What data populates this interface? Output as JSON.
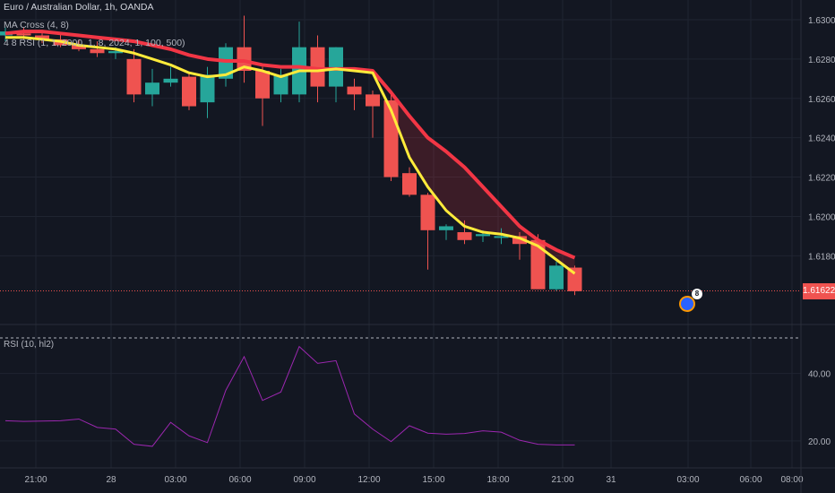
{
  "header": {
    "title": "Euro / Australian Dollar, 1h, OANDA",
    "ma_label": "MA Cross (4, 8)",
    "rsi_strategy_label": "4 8 RSI (1, 1, 2000, 1, 8, 2024, 1, 100, 500)",
    "rsi_label": "RSI (10, hl2)"
  },
  "last_price": "1.61622",
  "event_badge": {
    "icon": "flag-icon",
    "count": "8"
  },
  "colors": {
    "background": "#131722",
    "grid": "#1f2431",
    "up": "#26a69a",
    "down": "#ef5350",
    "ma_fast": "#ffeb3b",
    "ma_slow": "#f23645",
    "rsi_line": "#9c27b0",
    "text": "#b2b5be"
  },
  "chart_data": [
    {
      "type": "candlestick",
      "title": "Euro / Australian Dollar, 1h, OANDA",
      "y_ticks": [
        "1.63000",
        "1.62800",
        "1.62600",
        "1.62400",
        "1.62200",
        "1.62000",
        "1.61800"
      ],
      "ylim": [
        1.6146,
        1.631
      ],
      "x_ticks": [
        "21:00",
        "28",
        "03:00",
        "06:00",
        "09:00",
        "12:00",
        "15:00",
        "18:00",
        "21:00",
        "31",
        "03:00",
        "06:00",
        "08:00"
      ],
      "candles": [
        {
          "o": 1.6292,
          "h": 1.6296,
          "l": 1.6289,
          "c": 1.6294
        },
        {
          "o": 1.6293,
          "h": 1.6296,
          "l": 1.629,
          "c": 1.6292
        },
        {
          "o": 1.6292,
          "h": 1.6294,
          "l": 1.6288,
          "c": 1.629
        },
        {
          "o": 1.629,
          "h": 1.6293,
          "l": 1.6286,
          "c": 1.6287
        },
        {
          "o": 1.6287,
          "h": 1.629,
          "l": 1.6284,
          "c": 1.6285
        },
        {
          "o": 1.6285,
          "h": 1.6289,
          "l": 1.6281,
          "c": 1.6283
        },
        {
          "o": 1.6283,
          "h": 1.6286,
          "l": 1.628,
          "c": 1.6284
        },
        {
          "o": 1.628,
          "h": 1.6285,
          "l": 1.6258,
          "c": 1.6262
        },
        {
          "o": 1.6262,
          "h": 1.6275,
          "l": 1.6256,
          "c": 1.6268
        },
        {
          "o": 1.6268,
          "h": 1.6276,
          "l": 1.6266,
          "c": 1.627
        },
        {
          "o": 1.6271,
          "h": 1.6273,
          "l": 1.6254,
          "c": 1.6256
        },
        {
          "o": 1.6258,
          "h": 1.6276,
          "l": 1.625,
          "c": 1.6272
        },
        {
          "o": 1.627,
          "h": 1.6288,
          "l": 1.6266,
          "c": 1.6286
        },
        {
          "o": 1.6286,
          "h": 1.6302,
          "l": 1.6268,
          "c": 1.6274
        },
        {
          "o": 1.6274,
          "h": 1.6276,
          "l": 1.6246,
          "c": 1.626
        },
        {
          "o": 1.6262,
          "h": 1.6275,
          "l": 1.6258,
          "c": 1.6272
        },
        {
          "o": 1.6262,
          "h": 1.6299,
          "l": 1.6258,
          "c": 1.6286
        },
        {
          "o": 1.6286,
          "h": 1.6292,
          "l": 1.6258,
          "c": 1.6266
        },
        {
          "o": 1.6266,
          "h": 1.6286,
          "l": 1.6258,
          "c": 1.6286
        },
        {
          "o": 1.6266,
          "h": 1.627,
          "l": 1.6254,
          "c": 1.6262
        },
        {
          "o": 1.6262,
          "h": 1.6264,
          "l": 1.624,
          "c": 1.6256
        },
        {
          "o": 1.6259,
          "h": 1.6264,
          "l": 1.6218,
          "c": 1.622
        },
        {
          "o": 1.6222,
          "h": 1.6225,
          "l": 1.621,
          "c": 1.6211
        },
        {
          "o": 1.6211,
          "h": 1.6212,
          "l": 1.6173,
          "c": 1.6193
        },
        {
          "o": 1.6193,
          "h": 1.6196,
          "l": 1.6188,
          "c": 1.6195
        },
        {
          "o": 1.6192,
          "h": 1.6198,
          "l": 1.6186,
          "c": 1.6188
        },
        {
          "o": 1.619,
          "h": 1.6193,
          "l": 1.6187,
          "c": 1.6191
        },
        {
          "o": 1.619,
          "h": 1.6194,
          "l": 1.6186,
          "c": 1.619
        },
        {
          "o": 1.619,
          "h": 1.6192,
          "l": 1.6178,
          "c": 1.6186
        },
        {
          "o": 1.6188,
          "h": 1.6191,
          "l": 1.6163,
          "c": 1.6163
        },
        {
          "o": 1.6163,
          "h": 1.6177,
          "l": 1.6162,
          "c": 1.6175
        },
        {
          "o": 1.6174,
          "h": 1.6175,
          "l": 1.616,
          "c": 1.6162
        }
      ],
      "ma_fast": [
        1.6291,
        1.6291,
        1.629,
        1.6289,
        1.6287,
        1.6286,
        1.6285,
        1.6283,
        1.628,
        1.6277,
        1.6273,
        1.6271,
        1.6272,
        1.6276,
        1.6274,
        1.6271,
        1.6274,
        1.6274,
        1.6275,
        1.6274,
        1.6273,
        1.6254,
        1.623,
        1.6215,
        1.6203,
        1.6195,
        1.6192,
        1.6191,
        1.6189,
        1.6185,
        1.6178,
        1.6171
      ],
      "ma_slow": [
        1.6293,
        1.6294,
        1.6294,
        1.6293,
        1.6292,
        1.6291,
        1.629,
        1.6289,
        1.6287,
        1.6285,
        1.6282,
        1.628,
        1.6279,
        1.6279,
        1.6277,
        1.6276,
        1.6276,
        1.6275,
        1.6275,
        1.6275,
        1.6274,
        1.6263,
        1.6251,
        1.624,
        1.6233,
        1.6225,
        1.6215,
        1.6205,
        1.6195,
        1.6188,
        1.6183,
        1.6179
      ],
      "last_price": 1.61622
    },
    {
      "type": "line",
      "title": "RSI (10, hl2)",
      "y_ticks": [
        "40.00",
        "20.00"
      ],
      "ylim": [
        12,
        54
      ],
      "values": [
        26,
        25.8,
        25.9,
        26,
        26.5,
        24,
        23.5,
        19,
        18.4,
        25.5,
        21.5,
        19.5,
        35,
        45,
        32,
        34.5,
        48,
        43,
        43.8,
        28,
        23.5,
        19.8,
        24.5,
        22.3,
        22,
        22.2,
        23,
        22.6,
        20.2,
        19,
        18.8,
        18.8
      ]
    }
  ]
}
